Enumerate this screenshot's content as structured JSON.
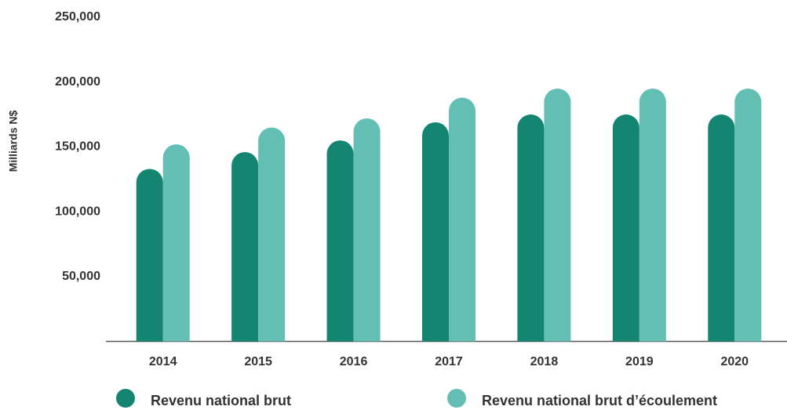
{
  "chart_data": {
    "type": "bar",
    "y_label": "Milliards N$",
    "categories": [
      "2014",
      "2015",
      "2016",
      "2017",
      "2018",
      "2019",
      "2020"
    ],
    "series": [
      {
        "name": "Revenu national brut",
        "color": "#138570",
        "values": [
          133000,
          146000,
          155000,
          169000,
          175000,
          175000,
          175000
        ]
      },
      {
        "name": "Revenu national brut d’écoulement",
        "color": "#63bfb3",
        "values": [
          152000,
          165000,
          172000,
          188000,
          195000,
          195000,
          195000
        ]
      }
    ],
    "ylim": [
      0,
      250000
    ],
    "yticks": [
      {
        "value": 50000,
        "label": "50,000"
      },
      {
        "value": 100000,
        "label": "100,000"
      },
      {
        "value": 150000,
        "label": "150,000"
      },
      {
        "value": 200000,
        "label": "200,000"
      },
      {
        "value": 250000,
        "label": "250,000"
      }
    ],
    "grid": false
  }
}
